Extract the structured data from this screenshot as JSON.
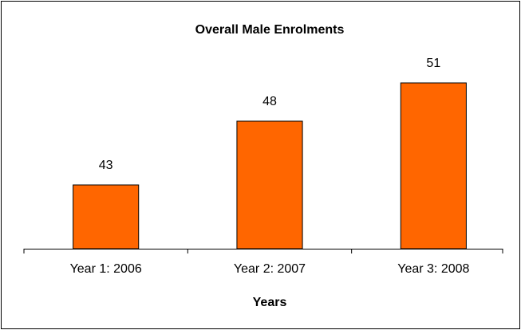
{
  "chart_data": {
    "type": "bar",
    "title": "Overall Male Enrolments",
    "x_label": "Years",
    "categories": [
      "Year 1: 2006",
      "Year 2: 2007",
      "Year 3: 2008"
    ],
    "values": [
      43,
      48,
      51
    ],
    "color": "#ff6600",
    "ylim": [
      38,
      54
    ]
  }
}
